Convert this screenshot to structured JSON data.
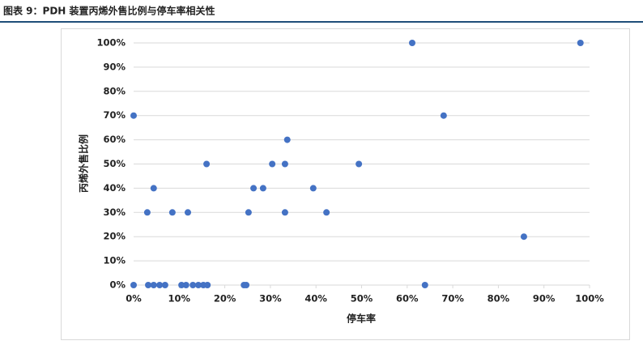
{
  "header": {
    "title": "图表 9：PDH 装置丙烯外售比例与停车率相关性"
  },
  "chart_data": {
    "type": "scatter",
    "xlabel": "停车率",
    "ylabel": "丙烯外售比例",
    "color": "#4472c4",
    "grid": true,
    "x": [
      0,
      0,
      3.2,
      4.4,
      5.7,
      6.9,
      10.5,
      11.5,
      13,
      14.2,
      15.3,
      16.2,
      24.2,
      24.7,
      63.9,
      3,
      4.4,
      8.5,
      11.9,
      16,
      25.2,
      26.3,
      28.4,
      30.4,
      33.2,
      33.2,
      33.7,
      39.4,
      42.3,
      49.4,
      61.1,
      68,
      85.6,
      98
    ],
    "y": [
      70,
      0,
      0,
      0,
      0,
      0,
      0,
      0,
      0,
      0,
      0,
      0,
      0,
      0,
      0,
      30,
      40,
      30,
      30,
      50,
      30,
      40,
      40,
      50,
      50,
      30,
      60,
      40,
      30,
      50,
      100,
      70,
      20,
      100
    ],
    "xlim": [
      0,
      100
    ],
    "ylim": [
      0,
      100
    ],
    "xticks": [
      {
        "value": 0,
        "label": "0%"
      },
      {
        "value": 10,
        "label": "10%"
      },
      {
        "value": 20,
        "label": "20%"
      },
      {
        "value": 30,
        "label": "30%"
      },
      {
        "value": 40,
        "label": "40%"
      },
      {
        "value": 50,
        "label": "50%"
      },
      {
        "value": 60,
        "label": "60%"
      },
      {
        "value": 70,
        "label": "70%"
      },
      {
        "value": 80,
        "label": "80%"
      },
      {
        "value": 90,
        "label": "90%"
      },
      {
        "value": 100,
        "label": "100%"
      }
    ],
    "yticks": [
      {
        "value": 0,
        "label": "0%"
      },
      {
        "value": 10,
        "label": "10%"
      },
      {
        "value": 20,
        "label": "20%"
      },
      {
        "value": 30,
        "label": "30%"
      },
      {
        "value": 40,
        "label": "40%"
      },
      {
        "value": 50,
        "label": "50%"
      },
      {
        "value": 60,
        "label": "60%"
      },
      {
        "value": 70,
        "label": "70%"
      },
      {
        "value": 80,
        "label": "80%"
      },
      {
        "value": 90,
        "label": "90%"
      },
      {
        "value": 100,
        "label": "100%"
      }
    ]
  }
}
